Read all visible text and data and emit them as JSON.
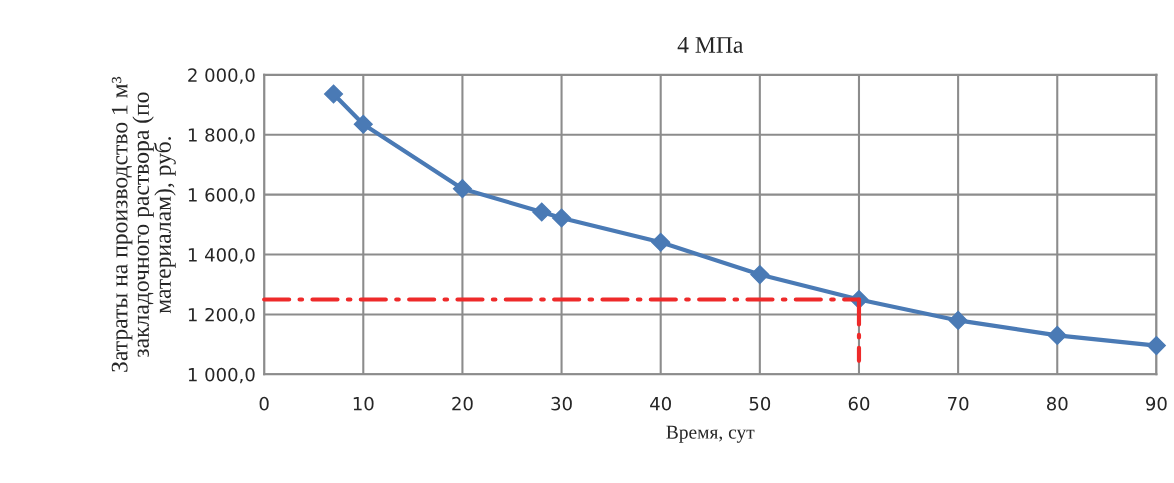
{
  "chart_data": {
    "type": "line",
    "title": "4 МПа",
    "xlabel": "Время, сут",
    "ylabel": "Затраты на производство 1 м³\nзакладочного раствора (по\nматериалам), руб.",
    "xlim": [
      0,
      90
    ],
    "xticks": [
      0,
      10,
      20,
      30,
      40,
      50,
      60,
      70,
      80,
      90
    ],
    "ylim": [
      1000,
      2000
    ],
    "yticks": [
      {
        "value": 1000,
        "label": "1 000,0"
      },
      {
        "value": 1200,
        "label": "1 200,0"
      },
      {
        "value": 1400,
        "label": "1 400,0"
      },
      {
        "value": 1600,
        "label": "1 600,0"
      },
      {
        "value": 1800,
        "label": "1 800,0"
      },
      {
        "value": 2000,
        "label": "2 000,0"
      }
    ],
    "grid": true,
    "series": [
      {
        "color": "#4a7ab5",
        "marker": "diamond",
        "line_style": "solid",
        "x": [
          7,
          10,
          20,
          28,
          30,
          40,
          50,
          60,
          70,
          80,
          90
        ],
        "values": [
          1936,
          1835,
          1620,
          1542,
          1522,
          1441,
          1333,
          1250,
          1180,
          1130,
          1096
        ]
      },
      {
        "color": "#ee2a2a",
        "marker": "none",
        "line_style": "dashed",
        "x": [
          0,
          60
        ],
        "values": [
          1250,
          1250
        ]
      },
      {
        "color": "#ee2a2a",
        "marker": "none",
        "line_style": "dashed",
        "x": [
          60,
          60
        ],
        "values": [
          1250,
          1045
        ]
      }
    ]
  }
}
